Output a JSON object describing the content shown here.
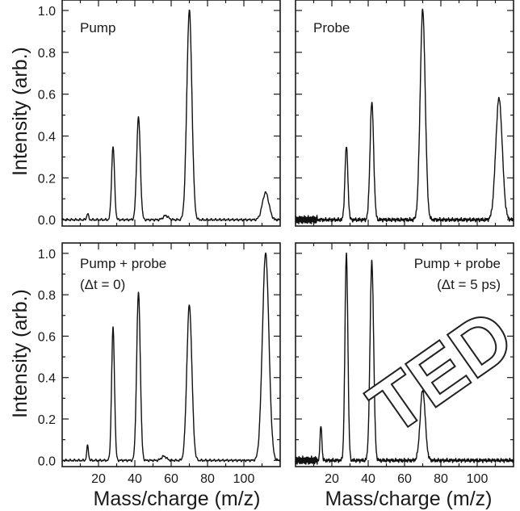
{
  "figure": {
    "ylabel": "Intensity (arb.)",
    "xlabel": "Mass/charge (m/z)",
    "watermark": "TED"
  },
  "chart_data": [
    {
      "type": "line",
      "annotation": [
        "Pump"
      ],
      "xlim": [
        0,
        120
      ],
      "ylim": [
        -0.03,
        1.05
      ],
      "x_ticks": [
        20,
        40,
        60,
        80,
        100
      ],
      "y_ticks": [
        0.0,
        0.2,
        0.4,
        0.6,
        0.8,
        1.0
      ],
      "peaks": [
        {
          "x": 14,
          "y": 0.03
        },
        {
          "x": 28,
          "y": 0.35
        },
        {
          "x": 42,
          "y": 0.49
        },
        {
          "x": 57,
          "y": 0.02
        },
        {
          "x": 70,
          "y": 1.0
        },
        {
          "x": 112,
          "y": 0.13
        }
      ]
    },
    {
      "type": "line",
      "annotation": [
        "Probe"
      ],
      "xlim": [
        0,
        120
      ],
      "ylim": [
        -0.03,
        1.05
      ],
      "x_ticks": [
        20,
        40,
        60,
        80,
        100
      ],
      "y_ticks": [
        0.0,
        0.2,
        0.4,
        0.6,
        0.8,
        1.0
      ],
      "peaks": [
        {
          "x": 28,
          "y": 0.35
        },
        {
          "x": 42,
          "y": 0.56
        },
        {
          "x": 70,
          "y": 1.0
        },
        {
          "x": 112,
          "y": 0.58
        }
      ]
    },
    {
      "type": "line",
      "annotation": [
        "Pump + probe",
        "(Δt = 0)"
      ],
      "xlim": [
        0,
        120
      ],
      "ylim": [
        -0.03,
        1.05
      ],
      "x_ticks": [
        20,
        40,
        60,
        80,
        100
      ],
      "y_ticks": [
        0.0,
        0.2,
        0.4,
        0.6,
        0.8,
        1.0
      ],
      "peaks": [
        {
          "x": 14,
          "y": 0.07
        },
        {
          "x": 28,
          "y": 0.64
        },
        {
          "x": 42,
          "y": 0.81
        },
        {
          "x": 56,
          "y": 0.02
        },
        {
          "x": 70,
          "y": 0.75
        },
        {
          "x": 112,
          "y": 1.0
        }
      ]
    },
    {
      "type": "line",
      "annotation": [
        "Pump + probe",
        "(Δt = 5 ps)"
      ],
      "xlim": [
        0,
        120
      ],
      "ylim": [
        -0.03,
        1.05
      ],
      "x_ticks": [
        20,
        40,
        60,
        80,
        100
      ],
      "y_ticks": [
        0.0,
        0.2,
        0.4,
        0.6,
        0.8,
        1.0
      ],
      "peaks": [
        {
          "x": 14,
          "y": 0.17
        },
        {
          "x": 28,
          "y": 1.0
        },
        {
          "x": 42,
          "y": 0.96
        },
        {
          "x": 70,
          "y": 0.34
        }
      ]
    }
  ]
}
